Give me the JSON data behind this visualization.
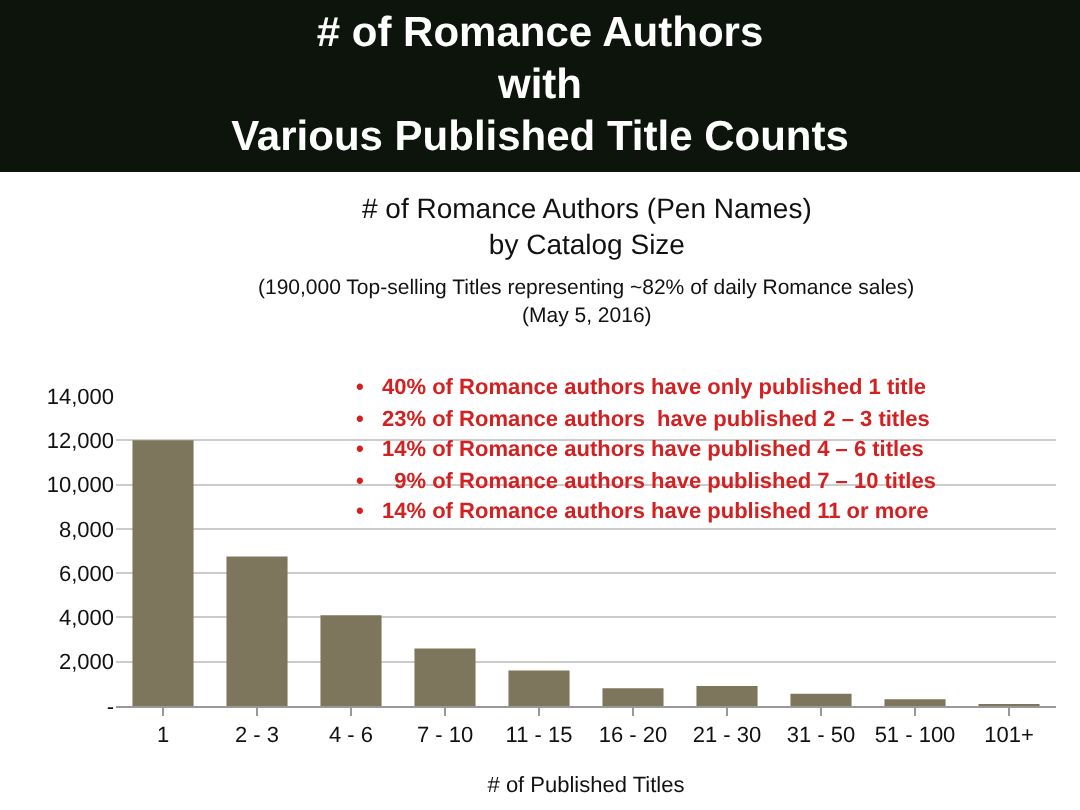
{
  "chart_data": {
    "type": "bar",
    "title": "# of Romance Authors\nwith\nVarious Published Title Counts",
    "subtitle": "# of Romance Authors (Pen Names)\nby Catalog Size",
    "xlabel": "# of Published Titles",
    "annotations": [
      "(190,000 Top-selling Titles representing ~82% of daily Romance sales)",
      "(May 5, 2016)",
      "•   40% of Romance authors have only published 1 title",
      "•   23% of Romance authors  have published 2 – 3 titles",
      "•   14% of Romance authors have published 4 – 6 titles",
      "•     9% of Romance authors have published 7 – 10 titles",
      "•   14% of Romance authors have published 11 or more"
    ],
    "categories": [
      "1",
      "2 - 3",
      "4 - 6",
      "7 - 10",
      "11 - 15",
      "16 - 20",
      "21 - 30",
      "31 - 50",
      "51 - 100",
      "101+"
    ],
    "values": [
      12000,
      6750,
      4100,
      2600,
      1600,
      800,
      900,
      550,
      300,
      50
    ],
    "color": "#7d765c",
    "ylim": [
      0,
      14000
    ],
    "yticks": [
      {
        "value": 0,
        "label": "-"
      },
      {
        "value": 2000,
        "label": "2,000"
      },
      {
        "value": 4000,
        "label": "4,000"
      },
      {
        "value": 6000,
        "label": "6,000"
      },
      {
        "value": 8000,
        "label": "8,000"
      },
      {
        "value": 10000,
        "label": "10,000"
      },
      {
        "value": 12000,
        "label": "12,000"
      },
      {
        "value": 14000,
        "label": "14,000"
      }
    ],
    "grid": "y",
    "legend": false
  }
}
